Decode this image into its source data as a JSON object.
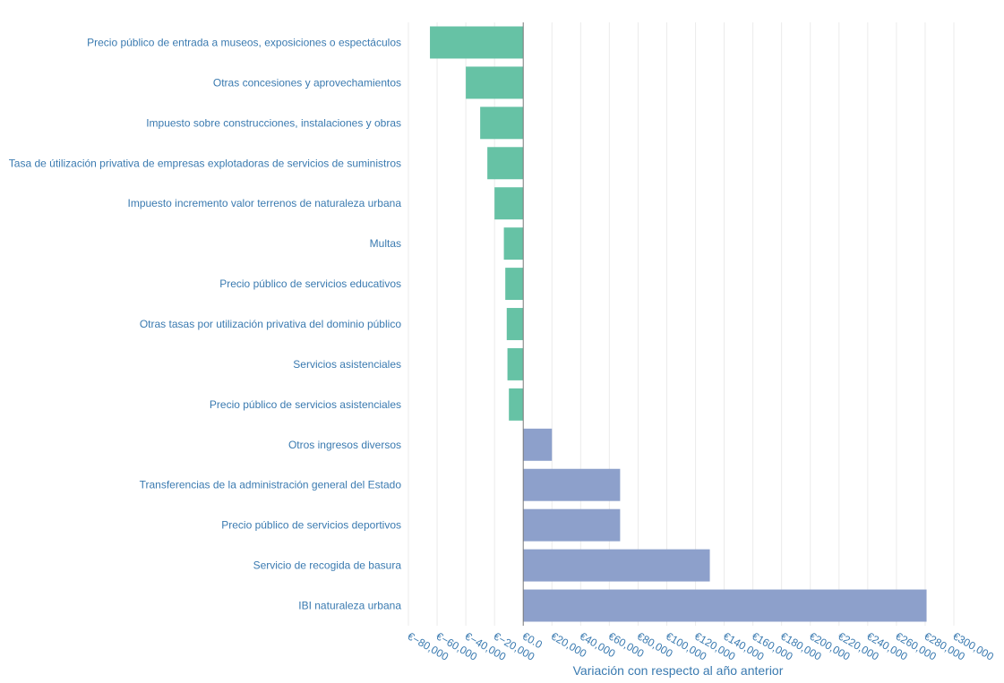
{
  "chart_data": {
    "type": "bar",
    "orientation": "horizontal",
    "title": "",
    "xlabel": "Variación con respecto al año anterior",
    "ylabel": "",
    "xlim": [
      -80000,
      300000
    ],
    "x_ticks": [
      -80000,
      -60000,
      -40000,
      -20000,
      0,
      20000,
      40000,
      60000,
      80000,
      100000,
      120000,
      140000,
      160000,
      180000,
      200000,
      220000,
      240000,
      260000,
      280000,
      300000
    ],
    "x_tick_labels": [
      "€−80,000",
      "€−60,000",
      "€−40,000",
      "€−20,000",
      "€0.0",
      "€20,000",
      "€40,000",
      "€60,000",
      "€80,000",
      "€100,000",
      "€120,000",
      "€140,000",
      "€160,000",
      "€180,000",
      "€200,000",
      "€220,000",
      "€240,000",
      "€260,000",
      "€280,000",
      "€300,000"
    ],
    "grid": true,
    "legend": "none",
    "colors": {
      "negative": "#66c2a5",
      "positive": "#8da0cb",
      "label": "#3a7ab0",
      "grid": "#ebebeb",
      "zero_line": "#777777"
    },
    "categories": [
      "Precio público de entrada a museos, exposiciones o espectáculos",
      "Otras concesiones y aprovechamientos",
      "Impuesto sobre construcciones, instalaciones y obras",
      "Tasa de útilización privativa de empresas explotadoras de servicios de suministros",
      "Impuesto incremento valor terrenos de naturaleza urbana",
      "Multas",
      "Precio público de servicios educativos",
      "Otras tasas por utilización privativa del dominio público",
      "Servicios asistenciales",
      "Precio público de servicios asistenciales",
      "Otros ingresos diversos",
      "Transferencias de la administración general del Estado",
      "Precio público de servicios deportivos",
      "Servicio de recogida de basura",
      "IBI naturaleza urbana"
    ],
    "values": [
      -65000,
      -40000,
      -30000,
      -25000,
      -20000,
      -13500,
      -12500,
      -11500,
      -11000,
      -10000,
      20000,
      67500,
      67500,
      130000,
      281000
    ]
  }
}
